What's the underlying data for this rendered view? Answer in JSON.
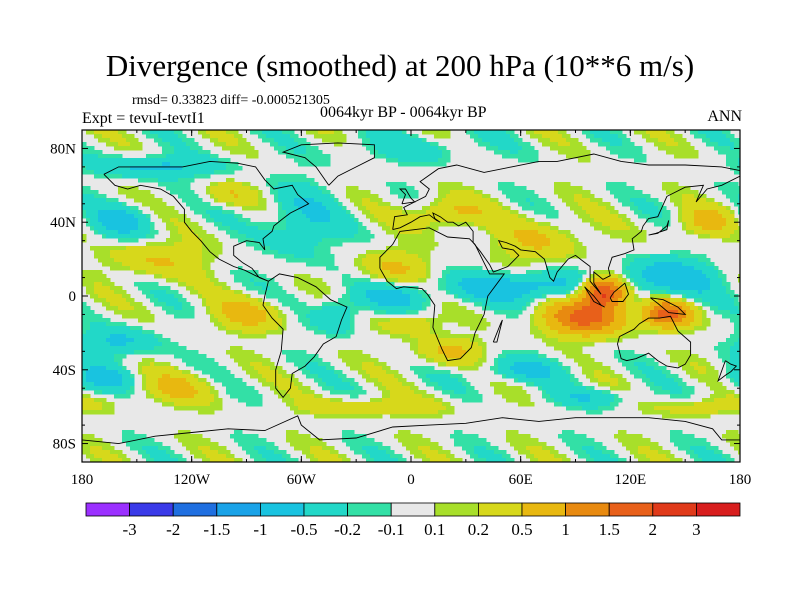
{
  "title": "Divergence (smoothed) at 200 hPa (10**6 m/s)",
  "stats": "rmsd= 0.33823 diff= -0.000521305",
  "expt": "Expt = tevuI-tevtI1",
  "period": "0064kyr BP - 0064kyr BP",
  "season": "ANN",
  "axes": {
    "lat_ticks": [
      "80N",
      "40N",
      "0",
      "40S",
      "80S"
    ],
    "lon_ticks": [
      "180",
      "120W",
      "60W",
      "0",
      "60E",
      "120E",
      "180"
    ]
  },
  "colorbar": {
    "labels": [
      "-3",
      "-2",
      "-1.5",
      "-1",
      "-0.5",
      "-0.2",
      "-0.1",
      "0.1",
      "0.2",
      "0.5",
      "1",
      "1.5",
      "2",
      "3"
    ],
    "colors": [
      "#9b30ff",
      "#3a3ae8",
      "#1f6fe0",
      "#1aa3e8",
      "#19c3e0",
      "#22d8c8",
      "#33e0a6",
      "#e8e8e8",
      "#a8df2a",
      "#d7d81b",
      "#e8b810",
      "#e88a10",
      "#e8601a",
      "#e03a1a",
      "#d81e1e"
    ]
  },
  "chart_data": {
    "type": "heatmap",
    "title": "Divergence (smoothed) at 200 hPa (10**6 m/s)",
    "variable": "Divergence (smoothed) at 200 hPa",
    "units": "10**6 m/s",
    "rmsd": 0.33823,
    "diff": -0.000521305,
    "lon_range": [
      -180,
      180
    ],
    "lat_range": [
      -90,
      90
    ],
    "contour_levels": [
      -3,
      -2,
      -1.5,
      -1,
      -0.5,
      -0.2,
      -0.1,
      0.1,
      0.2,
      0.5,
      1,
      1.5,
      2,
      3
    ],
    "blobs": [
      {
        "lon": 105,
        "lat": 2,
        "rlon": 12,
        "rlat": 8,
        "v": 2.4
      },
      {
        "lon": 95,
        "lat": -12,
        "rlon": 22,
        "rlat": 9,
        "v": 1.6
      },
      {
        "lon": 140,
        "lat": -10,
        "rlon": 12,
        "rlat": 7,
        "v": 1.7
      },
      {
        "lon": 60,
        "lat": 5,
        "rlon": 40,
        "rlat": 8,
        "v": -0.8
      },
      {
        "lon": 140,
        "lat": 10,
        "rlon": 28,
        "rlat": 10,
        "v": -0.8
      },
      {
        "lon": -10,
        "lat": 0,
        "rlon": 20,
        "rlat": 8,
        "v": -0.6
      },
      {
        "lon": -160,
        "lat": 40,
        "rlon": 18,
        "rlat": 9,
        "v": -0.6
      },
      {
        "lon": -140,
        "lat": 70,
        "rlon": 35,
        "rlat": 6,
        "v": -0.6
      },
      {
        "lon": -60,
        "lat": 40,
        "rlon": 20,
        "rlat": 20,
        "v": -0.5
      },
      {
        "lon": 0,
        "lat": 80,
        "rlon": 40,
        "rlat": 8,
        "v": -0.3
      },
      {
        "lon": -160,
        "lat": -25,
        "rlon": 20,
        "rlat": 8,
        "v": -0.6
      },
      {
        "lon": -170,
        "lat": -45,
        "rlon": 18,
        "rlat": 7,
        "v": -0.6
      },
      {
        "lon": 60,
        "lat": -40,
        "rlon": 25,
        "rlat": 7,
        "v": -0.5
      },
      {
        "lon": 20,
        "lat": 45,
        "rlon": 20,
        "rlat": 8,
        "v": 0.6
      },
      {
        "lon": -10,
        "lat": 15,
        "rlon": 20,
        "rlat": 10,
        "v": 0.5
      },
      {
        "lon": 70,
        "lat": 30,
        "rlon": 25,
        "rlat": 12,
        "v": 0.5
      },
      {
        "lon": -140,
        "lat": 20,
        "rlon": 28,
        "rlat": 10,
        "v": 0.5
      },
      {
        "lon": -90,
        "lat": -10,
        "rlon": 20,
        "rlat": 9,
        "v": 0.6
      },
      {
        "lon": -130,
        "lat": -50,
        "rlon": 22,
        "rlat": 9,
        "v": 0.5
      },
      {
        "lon": 20,
        "lat": -30,
        "rlon": 20,
        "rlat": 8,
        "v": 0.5
      },
      {
        "lon": 160,
        "lat": 40,
        "rlon": 15,
        "rlat": 8,
        "v": 0.6
      },
      {
        "lon": -20,
        "lat": -60,
        "rlon": 40,
        "rlat": 5,
        "v": 0.4
      },
      {
        "lon": 160,
        "lat": -60,
        "rlon": 25,
        "rlat": 5,
        "v": 0.4
      },
      {
        "lon": -40,
        "lat": -10,
        "rlon": 12,
        "rlat": 10,
        "v": -0.5
      },
      {
        "lon": 0,
        "lat": -15,
        "rlon": 15,
        "rlat": 6,
        "v": 0.5
      },
      {
        "lon": -100,
        "lat": 55,
        "rlon": 15,
        "rlat": 6,
        "v": 0.4
      },
      {
        "lon": 100,
        "lat": -55,
        "rlon": 25,
        "rlat": 5,
        "v": -0.4
      }
    ]
  }
}
